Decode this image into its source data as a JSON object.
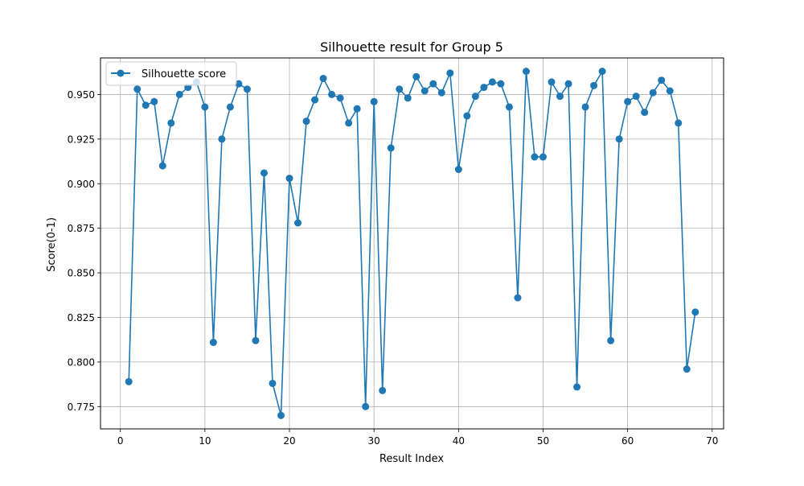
{
  "chart_data": {
    "type": "line",
    "title": "Silhouette result for Group 5",
    "xlabel": "Result Index",
    "ylabel": "Score(0-1)",
    "xlim": [
      -2.35,
      71.35
    ],
    "ylim": [
      0.7625,
      0.9705
    ],
    "x_ticks": [
      0,
      10,
      20,
      30,
      40,
      50,
      60,
      70
    ],
    "y_ticks": [
      0.775,
      0.8,
      0.825,
      0.85,
      0.875,
      0.9,
      0.925,
      0.95
    ],
    "x_tick_labels": [
      "0",
      "10",
      "20",
      "30",
      "40",
      "50",
      "60",
      "70"
    ],
    "y_tick_labels": [
      "0.775",
      "0.800",
      "0.825",
      "0.850",
      "0.875",
      "0.900",
      "0.925",
      "0.950"
    ],
    "grid": true,
    "legend_position": "top-left",
    "series": [
      {
        "name": "Silhouette score",
        "color": "#1f77b4",
        "marker": "circle",
        "x": [
          1,
          2,
          3,
          4,
          5,
          6,
          7,
          8,
          9,
          10,
          11,
          12,
          13,
          14,
          15,
          16,
          17,
          18,
          19,
          20,
          21,
          22,
          23,
          24,
          25,
          26,
          27,
          28,
          29,
          30,
          31,
          32,
          33,
          34,
          35,
          36,
          37,
          38,
          39,
          40,
          41,
          42,
          43,
          44,
          45,
          46,
          47,
          48,
          49,
          50,
          51,
          52,
          53,
          54,
          55,
          56,
          57,
          58,
          59,
          60,
          61,
          62,
          63,
          64,
          65,
          66,
          67,
          68
        ],
        "values": [
          0.789,
          0.953,
          0.944,
          0.946,
          0.91,
          0.934,
          0.95,
          0.954,
          0.957,
          0.943,
          0.811,
          0.925,
          0.943,
          0.956,
          0.953,
          0.812,
          0.906,
          0.788,
          0.77,
          0.903,
          0.878,
          0.935,
          0.947,
          0.959,
          0.95,
          0.948,
          0.934,
          0.942,
          0.775,
          0.946,
          0.784,
          0.92,
          0.953,
          0.948,
          0.96,
          0.952,
          0.956,
          0.951,
          0.962,
          0.908,
          0.938,
          0.949,
          0.954,
          0.957,
          0.956,
          0.943,
          0.836,
          0.963,
          0.915,
          0.915,
          0.957,
          0.949,
          0.956,
          0.786,
          0.943,
          0.955,
          0.963,
          0.812,
          0.925,
          0.946,
          0.949,
          0.94,
          0.951,
          0.958,
          0.952,
          0.934,
          0.796,
          0.828
        ]
      }
    ]
  }
}
